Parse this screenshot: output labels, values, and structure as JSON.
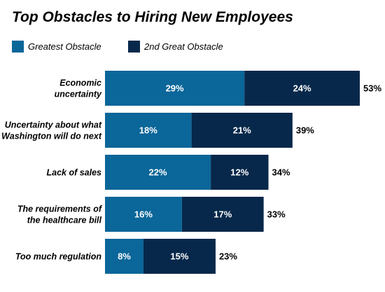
{
  "chart_data": {
    "type": "bar",
    "orientation": "horizontal",
    "stacked": true,
    "title": "Top Obstacles to Hiring New Employees",
    "categories": [
      [
        "Economic",
        "uncertainty"
      ],
      [
        "Uncertainty about what",
        "Washington will do next"
      ],
      [
        "Lack of sales"
      ],
      [
        "The requirements of",
        "the healthcare bill"
      ],
      [
        "Too much regulation"
      ]
    ],
    "series": [
      {
        "name": "Greatest Obstacle",
        "color": "#0b6699",
        "values": [
          29,
          18,
          22,
          16,
          8
        ]
      },
      {
        "name": "2nd Great Obstacle",
        "color": "#07284a",
        "values": [
          24,
          21,
          12,
          17,
          15
        ]
      }
    ],
    "totals": [
      53,
      39,
      34,
      33,
      23
    ],
    "value_suffix": "%",
    "xlim": [
      0,
      53
    ],
    "grid": false,
    "legend": "top-left"
  }
}
